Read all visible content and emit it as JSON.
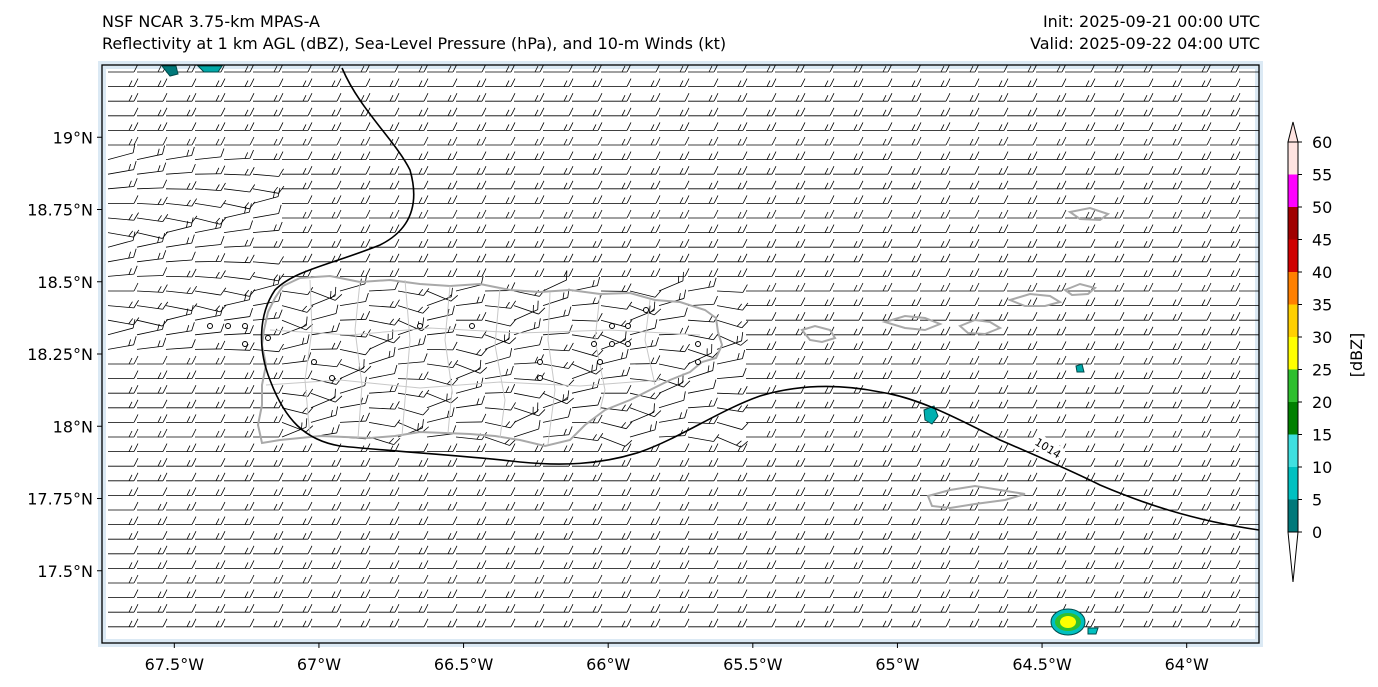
{
  "header": {
    "title_line1": "NSF NCAR 3.75-km MPAS-A",
    "title_line2": "Reflectivity at 1 km AGL (dBZ), Sea-Level Pressure (hPa), and 10-m Winds (kt)",
    "init": "Init: 2025-09-21 00:00 UTC",
    "valid": "Valid: 2025-09-22 04:00 UTC"
  },
  "map": {
    "lon_range": [
      -67.75,
      -63.75
    ],
    "lat_range": [
      17.25,
      19.25
    ],
    "lon_ticks": [
      {
        "value": -67.5,
        "label": "67.5°W"
      },
      {
        "value": -67.0,
        "label": "67°W"
      },
      {
        "value": -66.5,
        "label": "66.5°W"
      },
      {
        "value": -66.0,
        "label": "66°W"
      },
      {
        "value": -65.5,
        "label": "65.5°W"
      },
      {
        "value": -65.0,
        "label": "65°W"
      },
      {
        "value": -64.5,
        "label": "64.5°W"
      },
      {
        "value": -64.0,
        "label": "64°W"
      }
    ],
    "lat_ticks": [
      {
        "value": 19.0,
        "label": "19°N"
      },
      {
        "value": 18.75,
        "label": "18.75°N"
      },
      {
        "value": 18.5,
        "label": "18.5°N"
      },
      {
        "value": 18.25,
        "label": "18.25°N"
      },
      {
        "value": 18.0,
        "label": "18°N"
      },
      {
        "value": 17.75,
        "label": "17.75°N"
      },
      {
        "value": 17.5,
        "label": "17.5°N"
      }
    ],
    "isobar_label": "1014",
    "colors": {
      "coastline": "#a9a9a9",
      "isobar": "#000000",
      "barb": "#000000",
      "ocean_edge": "#dbe9f4"
    }
  },
  "colorbar": {
    "label": "[dBZ]",
    "ticks": [
      "0",
      "5",
      "10",
      "15",
      "20",
      "25",
      "30",
      "35",
      "40",
      "45",
      "50",
      "55",
      "60"
    ],
    "colors": [
      "#00787a",
      "#00c0c0",
      "#3fe0e0",
      "#008000",
      "#2fbf2f",
      "#ffff00",
      "#ffd000",
      "#ff8000",
      "#d00000",
      "#a00000",
      "#ff00ff",
      "#ffe4e1"
    ]
  }
}
